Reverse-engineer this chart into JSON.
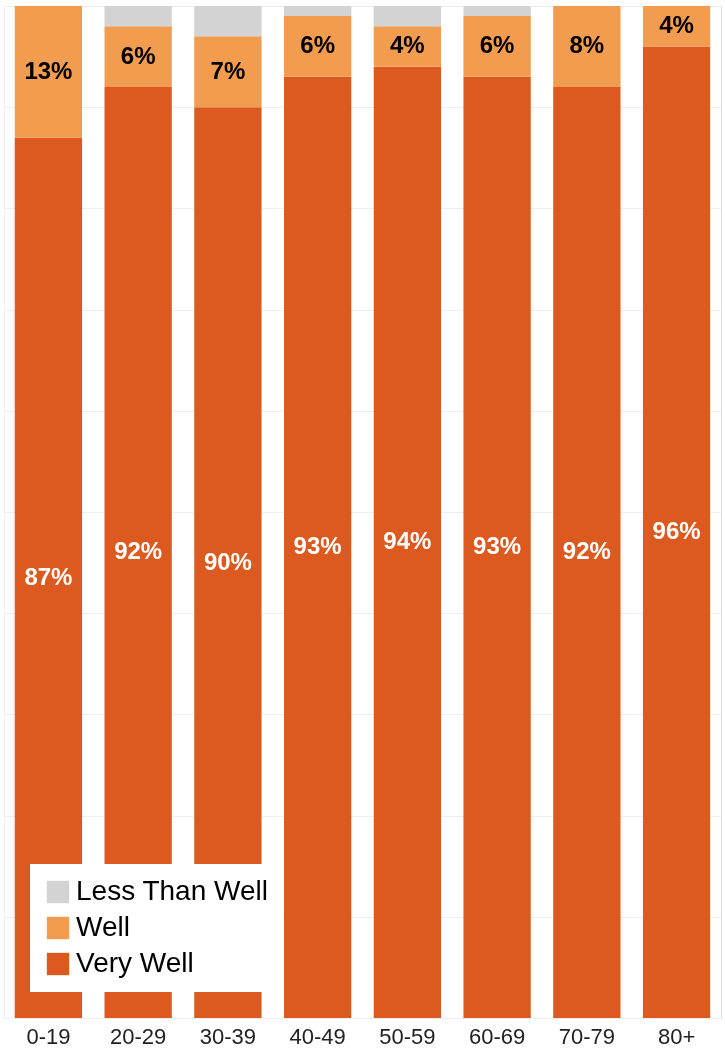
{
  "chart_data": {
    "type": "bar",
    "stacked": true,
    "categories": [
      "0-19",
      "20-29",
      "30-39",
      "40-49",
      "50-59",
      "60-69",
      "70-79",
      "80+"
    ],
    "series": [
      {
        "name": "Very Well",
        "color": "#dc5a1f",
        "values": [
          87,
          92,
          90,
          93,
          94,
          93,
          92,
          96
        ],
        "value_labels": [
          "87%",
          "92%",
          "90%",
          "93%",
          "94%",
          "93%",
          "92%",
          "96%"
        ]
      },
      {
        "name": "Well",
        "color": "#f29c50",
        "values": [
          13,
          6,
          7,
          6,
          4,
          6,
          8,
          4
        ],
        "value_labels": [
          "13%",
          "6%",
          "7%",
          "6%",
          "4%",
          "6%",
          "8%",
          "4%"
        ]
      },
      {
        "name": "Less Than Well",
        "color": "#d3d3d3",
        "values": [
          0,
          2,
          3,
          1,
          2,
          1,
          0,
          0
        ],
        "value_labels": [
          null,
          null,
          null,
          null,
          null,
          null,
          null,
          null
        ]
      }
    ],
    "ylim": [
      0,
      100
    ],
    "yticks": [
      {
        "value": 0,
        "label": null
      },
      {
        "value": 10,
        "label": null
      },
      {
        "value": 20,
        "label": null
      },
      {
        "value": 30,
        "label": null
      },
      {
        "value": 40,
        "label": null
      },
      {
        "value": 50,
        "label": null
      },
      {
        "value": 60,
        "label": null
      },
      {
        "value": 70,
        "label": null
      },
      {
        "value": 80,
        "label": null
      },
      {
        "value": 90,
        "label": null
      },
      {
        "value": 100,
        "label": null
      }
    ],
    "tick_labels": "x",
    "grid": "y",
    "legend": "bottom left"
  }
}
